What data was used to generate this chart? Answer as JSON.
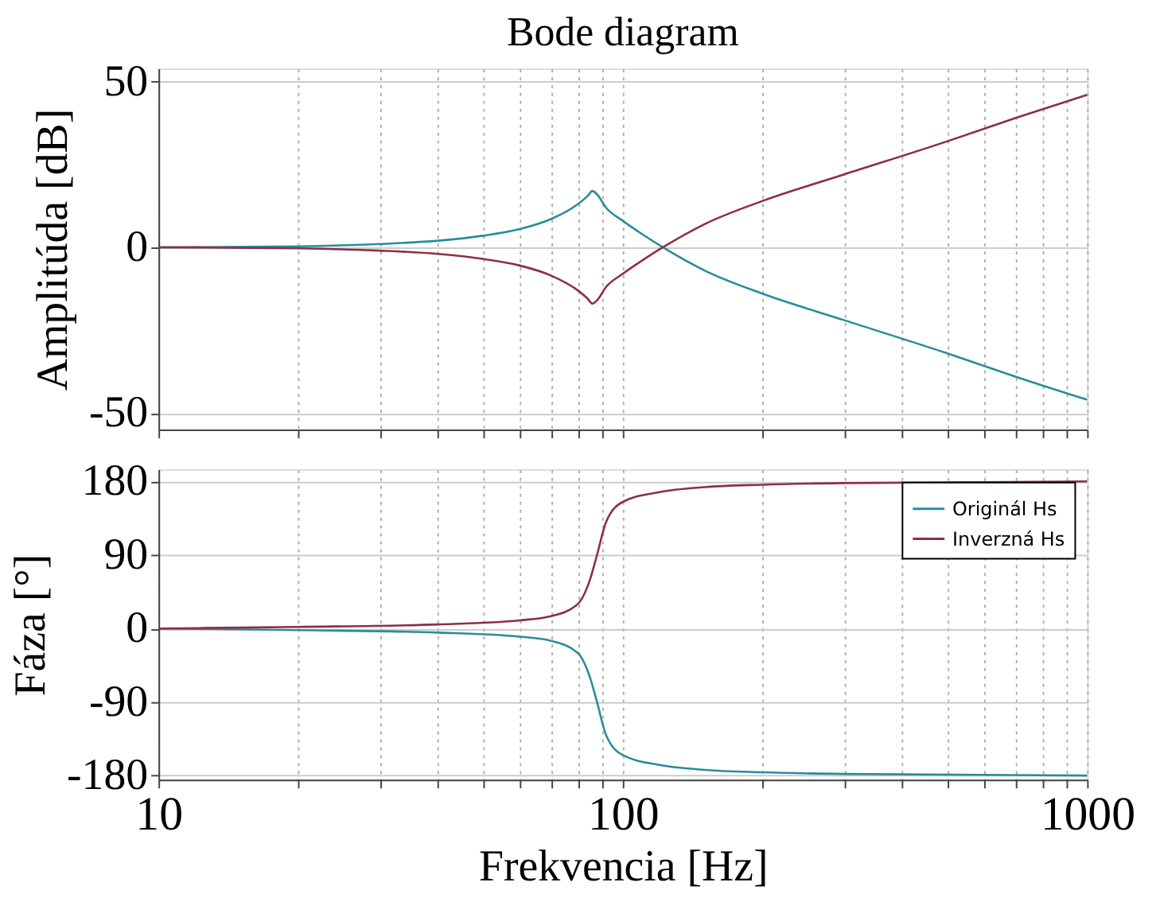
{
  "chart_data": [
    {
      "type": "line",
      "title": "Bode diagram",
      "ylabel": "Amplitúda [dB]",
      "log": "x",
      "grid": true,
      "tick_labels": "y",
      "xlim": [
        10,
        1000
      ],
      "ylim": [
        -55,
        54
      ],
      "yticks": [
        -50,
        0,
        50
      ],
      "xticks": [
        10,
        {
          "value": 20,
          "label": null
        },
        {
          "value": 30,
          "label": null
        },
        {
          "value": 40,
          "label": null
        },
        {
          "value": 50,
          "label": null
        },
        {
          "value": 60,
          "label": null
        },
        {
          "value": 70,
          "label": null
        },
        {
          "value": 80,
          "label": null
        },
        {
          "value": 90,
          "label": null
        },
        100,
        {
          "value": 200,
          "label": null
        },
        {
          "value": 300,
          "label": null
        },
        {
          "value": 400,
          "label": null
        },
        {
          "value": 500,
          "label": null
        },
        {
          "value": 600,
          "label": null
        },
        {
          "value": 700,
          "label": null
        },
        {
          "value": 800,
          "label": null
        },
        {
          "value": 900,
          "label": null
        },
        1000
      ],
      "x": [
        10,
        20,
        30,
        40,
        50,
        60,
        70,
        80,
        84,
        86,
        88,
        92,
        100,
        110,
        122,
        150,
        200,
        300,
        500,
        700,
        1000
      ],
      "series": [
        {
          "color": "#2a8c9c",
          "values": [
            0,
            0.3,
            1,
            2,
            3.5,
            5.5,
            8.5,
            13,
            15.5,
            17,
            16,
            12,
            8,
            4,
            0,
            -7,
            -14,
            -22,
            -32,
            -39,
            -46
          ]
        },
        {
          "color": "#8c2f45",
          "values": [
            0,
            -0.3,
            -1,
            -2,
            -3.5,
            -5.5,
            -8.5,
            -13,
            -15.5,
            -17,
            -16,
            -12,
            -8,
            -4,
            0,
            7,
            14,
            22,
            32,
            39,
            46
          ]
        }
      ]
    },
    {
      "type": "line",
      "xlabel": "Frekvencia  [Hz]",
      "ylabel": "Fáza [°]",
      "log": "x",
      "grid": true,
      "legend": "top right",
      "xlim": [
        10,
        1000
      ],
      "ylim": [
        -185,
        195
      ],
      "yticks": [
        -180,
        -90,
        0,
        90,
        180
      ],
      "xticks": [
        10,
        {
          "value": 20,
          "label": null
        },
        {
          "value": 30,
          "label": null
        },
        {
          "value": 40,
          "label": null
        },
        {
          "value": 50,
          "label": null
        },
        {
          "value": 60,
          "label": null
        },
        {
          "value": 70,
          "label": null
        },
        {
          "value": 80,
          "label": null
        },
        {
          "value": 90,
          "label": null
        },
        100,
        {
          "value": 200,
          "label": null
        },
        {
          "value": 300,
          "label": null
        },
        {
          "value": 400,
          "label": null
        },
        {
          "value": 500,
          "label": null
        },
        {
          "value": 600,
          "label": null
        },
        {
          "value": 700,
          "label": null
        },
        {
          "value": 800,
          "label": null
        },
        {
          "value": 900,
          "label": null
        },
        1000
      ],
      "x": [
        10,
        20,
        40,
        60,
        70,
        80,
        85,
        88,
        92,
        100,
        120,
        150,
        200,
        300,
        1000
      ],
      "series": [
        {
          "name": "Originál Hs",
          "color": "#2a8c9c",
          "values": [
            0,
            -2,
            -5,
            -10,
            -15,
            -30,
            -60,
            -90,
            -130,
            -155,
            -167,
            -173,
            -176,
            -178,
            -180
          ]
        },
        {
          "name": "Inverzná Hs",
          "color": "#8c2f45",
          "values": [
            0,
            2,
            5,
            10,
            15,
            30,
            60,
            90,
            130,
            155,
            167,
            173,
            176,
            178,
            180
          ]
        }
      ]
    }
  ]
}
